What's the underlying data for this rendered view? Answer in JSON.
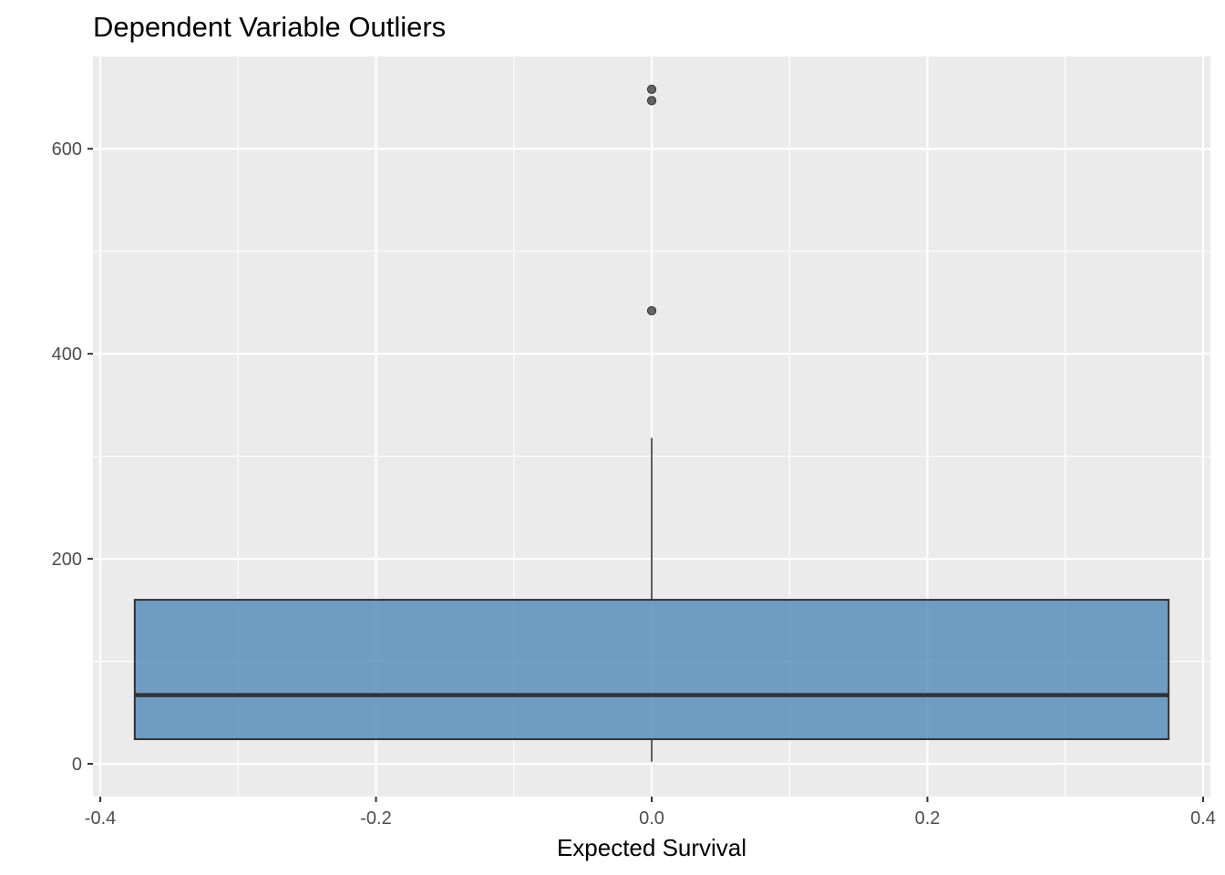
{
  "chart_data": {
    "type": "boxplot",
    "title": "Dependent Variable Outliers",
    "xlabel": "Expected Survival",
    "ylabel": "",
    "x_ticks": [
      -0.4,
      -0.2,
      0.0,
      0.2,
      0.4
    ],
    "x_tick_labels": [
      "-0.4",
      "-0.2",
      "0.0",
      "0.2",
      "0.4"
    ],
    "y_ticks": [
      0,
      200,
      400,
      600
    ],
    "y_tick_labels": [
      "0",
      "200",
      "400",
      "600"
    ],
    "xlim": [
      -0.4053,
      0.4053
    ],
    "ylim": [
      -32,
      690
    ],
    "grid": true,
    "legend": "none",
    "box": {
      "x": 0.0,
      "width": 0.75,
      "min": 2,
      "q1": 24,
      "median": 67,
      "q3": 160,
      "max": 318,
      "outliers": [
        442,
        647,
        658
      ]
    },
    "colors": {
      "panel_background": "#ebebeb",
      "grid_major": "#ffffff",
      "box_fill": "#4682b4",
      "box_line": "#333333",
      "outlier": "#333333"
    }
  }
}
